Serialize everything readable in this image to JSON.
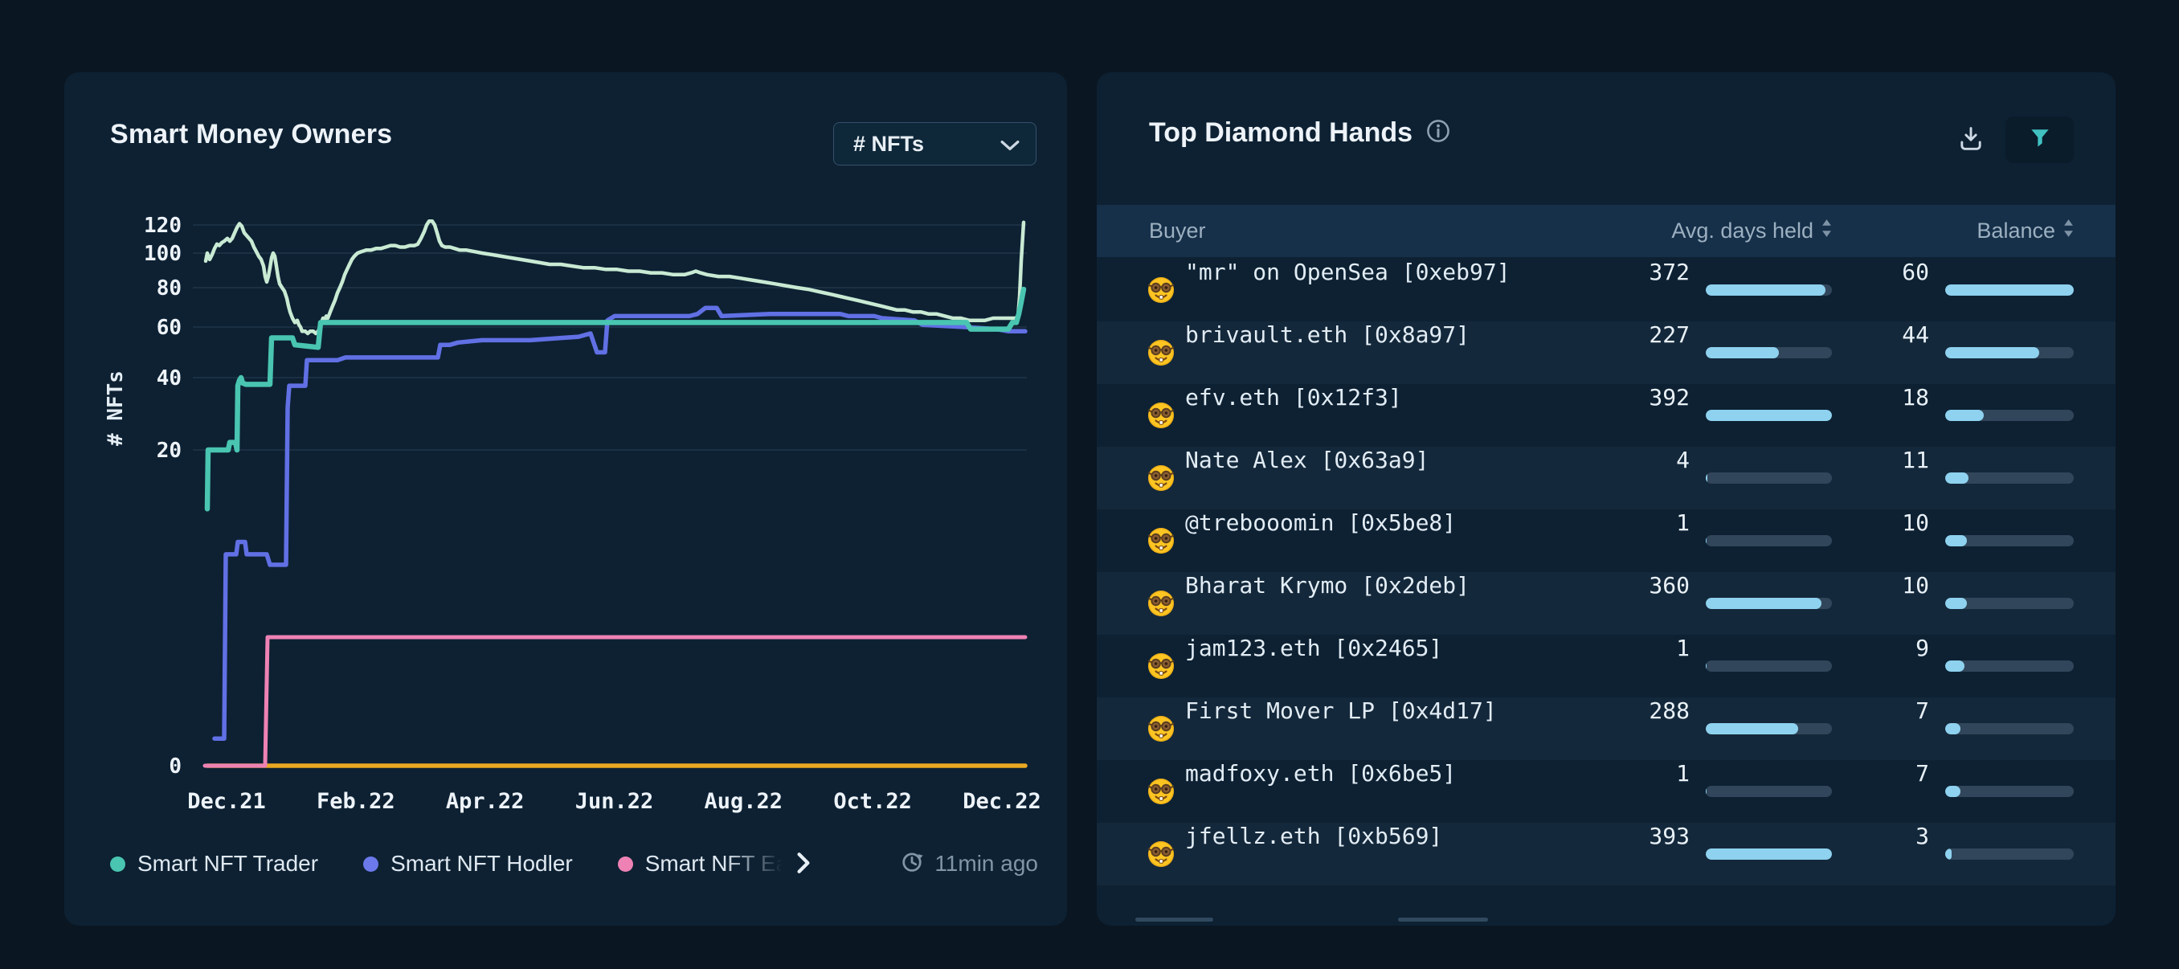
{
  "left_panel": {
    "title": "Smart Money Owners",
    "metric_dropdown": {
      "value": "# NFTs"
    },
    "last_updated": "11min ago",
    "legend": [
      {
        "label": "Smart NFT Trader",
        "color": "#49c5b1",
        "truncated": false
      },
      {
        "label": "Smart NFT Hodler",
        "color": "#6b79ea",
        "truncated": false
      },
      {
        "label": "Smart NFT Ea",
        "color": "#ee82b4",
        "truncated": true
      }
    ],
    "chart_data": {
      "type": "line",
      "title": "Smart Money Owners",
      "ylabel": "# NFTs",
      "y_scale": "log",
      "grid": "horizontal",
      "y_axis": {
        "ticks": [
          120,
          100,
          80,
          60,
          40,
          20
        ],
        "zero_tick": 0
      },
      "x_axis": {
        "ticks": [
          "Dec.21",
          "Feb.22",
          "Apr.22",
          "Jun.22",
          "Aug.22",
          "Oct.22",
          "Dec.22"
        ]
      },
      "series": [
        {
          "id": "mint-line",
          "legend": null,
          "color": "#c9ead3",
          "width": 4.5,
          "scale": "log",
          "points": [
            [
              256,
              95
            ],
            [
              258,
              100
            ],
            [
              261,
              96
            ],
            [
              264,
              99
            ],
            [
              267,
              103
            ],
            [
              270,
              106
            ],
            [
              273,
              105
            ],
            [
              276,
              107
            ],
            [
              279,
              108
            ],
            [
              283,
              110
            ],
            [
              286,
              108
            ],
            [
              289,
              110
            ],
            [
              292,
              114
            ],
            [
              295,
              118
            ],
            [
              298,
              121
            ],
            [
              301,
              119
            ],
            [
              304,
              114
            ],
            [
              307,
              112
            ],
            [
              310,
              110
            ],
            [
              313,
              108
            ],
            [
              316,
              104
            ],
            [
              319,
              101
            ],
            [
              322,
              98
            ],
            [
              325,
              96
            ],
            [
              328,
              92
            ],
            [
              330,
              86
            ],
            [
              332,
              83
            ],
            [
              334,
              86
            ],
            [
              336,
              91
            ],
            [
              338,
              97
            ],
            [
              340,
              100
            ],
            [
              342,
              98
            ],
            [
              344,
              92
            ],
            [
              346,
              86
            ],
            [
              348,
              82
            ],
            [
              351,
              80
            ],
            [
              354,
              78
            ],
            [
              357,
              74
            ],
            [
              359,
              70
            ],
            [
              361,
              67
            ],
            [
              364,
              64
            ],
            [
              367,
              62
            ],
            [
              370,
              63
            ],
            [
              372,
              61
            ],
            [
              374,
              60
            ],
            [
              376,
              58
            ],
            [
              380,
              58
            ],
            [
              383,
              57
            ],
            [
              386,
              58
            ],
            [
              390,
              58
            ],
            [
              393,
              57
            ],
            [
              396,
              58
            ],
            [
              398,
              60
            ],
            [
              400,
              62
            ],
            [
              402,
              64
            ],
            [
              404,
              63
            ],
            [
              406,
              65
            ],
            [
              408,
              64
            ],
            [
              411,
              67
            ],
            [
              414,
              70
            ],
            [
              417,
              73
            ],
            [
              420,
              77
            ],
            [
              423,
              80
            ],
            [
              426,
              83
            ],
            [
              429,
              87
            ],
            [
              432,
              90
            ],
            [
              435,
              93
            ],
            [
              438,
              96
            ],
            [
              441,
              98
            ],
            [
              445,
              100
            ],
            [
              450,
              101
            ],
            [
              456,
              102
            ],
            [
              462,
              102
            ],
            [
              468,
              103
            ],
            [
              474,
              103
            ],
            [
              480,
              104
            ],
            [
              486,
              105
            ],
            [
              492,
              105
            ],
            [
              498,
              104
            ],
            [
              504,
              104
            ],
            [
              510,
              105
            ],
            [
              516,
              105
            ],
            [
              520,
              106
            ],
            [
              524,
              110
            ],
            [
              528,
              115
            ],
            [
              531,
              120
            ],
            [
              534,
              123
            ],
            [
              538,
              123
            ],
            [
              541,
              120
            ],
            [
              544,
              114
            ],
            [
              547,
              108
            ],
            [
              550,
              105
            ],
            [
              554,
              104
            ],
            [
              560,
              104
            ],
            [
              566,
              103
            ],
            [
              572,
              102
            ],
            [
              580,
              102
            ],
            [
              590,
              101
            ],
            [
              600,
              100
            ],
            [
              612,
              99
            ],
            [
              624,
              98
            ],
            [
              636,
              97
            ],
            [
              648,
              96
            ],
            [
              660,
              95
            ],
            [
              672,
              94
            ],
            [
              684,
              93
            ],
            [
              698,
              93
            ],
            [
              712,
              92
            ],
            [
              726,
              91
            ],
            [
              740,
              91
            ],
            [
              754,
              90
            ],
            [
              768,
              90
            ],
            [
              782,
              89
            ],
            [
              796,
              89
            ],
            [
              810,
              88
            ],
            [
              824,
              88
            ],
            [
              838,
              87
            ],
            [
              852,
              87
            ],
            [
              860,
              88
            ],
            [
              866,
              89
            ],
            [
              872,
              88
            ],
            [
              880,
              87
            ],
            [
              894,
              86
            ],
            [
              908,
              86
            ],
            [
              922,
              85
            ],
            [
              936,
              84
            ],
            [
              950,
              83
            ],
            [
              964,
              82
            ],
            [
              978,
              81
            ],
            [
              992,
              80
            ],
            [
              1006,
              79
            ],
            [
              1016,
              78
            ],
            [
              1026,
              77
            ],
            [
              1036,
              76
            ],
            [
              1046,
              75
            ],
            [
              1056,
              74
            ],
            [
              1066,
              73
            ],
            [
              1076,
              72
            ],
            [
              1086,
              71
            ],
            [
              1096,
              70
            ],
            [
              1106,
              69
            ],
            [
              1116,
              68
            ],
            [
              1126,
              68
            ],
            [
              1136,
              67
            ],
            [
              1146,
              67
            ],
            [
              1156,
              66
            ],
            [
              1166,
              66
            ],
            [
              1176,
              65
            ],
            [
              1186,
              64
            ],
            [
              1196,
              64
            ],
            [
              1206,
              63
            ],
            [
              1216,
              63
            ],
            [
              1226,
              63
            ],
            [
              1236,
              64
            ],
            [
              1246,
              64
            ],
            [
              1256,
              64
            ],
            [
              1264,
              64
            ],
            [
              1267,
              65
            ],
            [
              1269,
              75
            ],
            [
              1271,
              95
            ],
            [
              1274,
              122
            ]
          ]
        },
        {
          "id": "blue-line",
          "legend": "Smart NFT Hodler",
          "color": "#6170e4",
          "width": 5.5,
          "scale": "log",
          "points": [
            [
              267,
              2
            ],
            [
              279,
              2
            ],
            [
              281,
              8.7
            ],
            [
              294,
              8.7
            ],
            [
              296,
              9.6
            ],
            [
              305,
              9.6
            ],
            [
              307,
              8.7
            ],
            [
              332,
              8.7
            ],
            [
              336,
              8
            ],
            [
              356,
              8
            ],
            [
              358,
              30
            ],
            [
              360,
              37
            ],
            [
              380,
              37
            ],
            [
              382,
              46
            ],
            [
              420,
              46
            ],
            [
              430,
              47
            ],
            [
              545,
              47
            ],
            [
              548,
              52
            ],
            [
              560,
              52
            ],
            [
              570,
              53
            ],
            [
              600,
              54
            ],
            [
              660,
              54
            ],
            [
              700,
              55
            ],
            [
              720,
              55.5
            ],
            [
              735,
              57
            ],
            [
              743,
              49
            ],
            [
              753,
              49
            ],
            [
              756,
              63
            ],
            [
              765,
              65
            ],
            [
              858,
              65
            ],
            [
              868,
              66
            ],
            [
              878,
              69
            ],
            [
              892,
              69
            ],
            [
              898,
              65
            ],
            [
              958,
              66
            ],
            [
              1006,
              66
            ],
            [
              1046,
              66
            ],
            [
              1056,
              65
            ],
            [
              1088,
              65
            ],
            [
              1098,
              64
            ],
            [
              1138,
              63
            ],
            [
              1148,
              61
            ],
            [
              1200,
              60
            ],
            [
              1240,
              59
            ],
            [
              1255,
              58
            ],
            [
              1262,
              58
            ],
            [
              1276,
              58
            ]
          ]
        },
        {
          "id": "teal-line",
          "legend": "Smart NFT Trader",
          "color": "#49c5b1",
          "width": 6.5,
          "scale": "log",
          "points": [
            [
              258,
              12.5
            ],
            [
              259,
              20
            ],
            [
              284,
              20
            ],
            [
              286,
              21.5
            ],
            [
              293,
              21.5
            ],
            [
              295,
              20
            ],
            [
              296,
              37
            ],
            [
              298,
              39
            ],
            [
              300,
              40
            ],
            [
              302,
              38
            ],
            [
              306,
              37.5
            ],
            [
              336,
              37.5
            ],
            [
              338,
              55
            ],
            [
              364,
              55
            ],
            [
              367,
              52
            ],
            [
              396,
              51
            ],
            [
              399,
              62
            ],
            [
              1203,
              62
            ],
            [
              1208,
              59
            ],
            [
              1255,
              59
            ],
            [
              1260,
              62
            ],
            [
              1265,
              62
            ],
            [
              1268,
              66
            ],
            [
              1271,
              72
            ],
            [
              1274,
              79
            ]
          ]
        },
        {
          "id": "yellow-line",
          "legend": null,
          "color": "#e9a823",
          "width": 5.5,
          "scale": "px",
          "points": [
            [
              258,
              953
            ],
            [
              1276,
              953
            ]
          ]
        },
        {
          "id": "pink-line",
          "legend": "Smart NFT Ea",
          "color": "#ee82b4",
          "width": 5,
          "scale": "px",
          "points": [
            [
              255,
              953
            ],
            [
              330,
              953
            ],
            [
              333,
              793
            ],
            [
              1276,
              793
            ]
          ]
        }
      ]
    }
  },
  "right_panel": {
    "title": "Top Diamond Hands",
    "columns": [
      "Buyer",
      "Avg. days held",
      "Balance"
    ],
    "avg_days_max": 393,
    "balance_max": 60,
    "bar_fill_color": "#8ed2ef",
    "bar_track_color": "#31465a",
    "rows": [
      {
        "buyer": "\"mr\" on OpenSea [0xeb97]",
        "avg_days": 372,
        "balance": 60
      },
      {
        "buyer": "brivault.eth [0x8a97]",
        "avg_days": 227,
        "balance": 44
      },
      {
        "buyer": "efv.eth [0x12f3]",
        "avg_days": 392,
        "balance": 18
      },
      {
        "buyer": "Nate Alex [0x63a9]",
        "avg_days": 4,
        "balance": 11
      },
      {
        "buyer": "@trebooomin [0x5be8]",
        "avg_days": 1,
        "balance": 10
      },
      {
        "buyer": "Bharat Krymo [0x2deb]",
        "avg_days": 360,
        "balance": 10
      },
      {
        "buyer": "jam123.eth [0x2465]",
        "avg_days": 1,
        "balance": 9
      },
      {
        "buyer": "First Mover LP [0x4d17]",
        "avg_days": 288,
        "balance": 7
      },
      {
        "buyer": "madfoxy.eth [0x6be5]",
        "avg_days": 1,
        "balance": 7
      },
      {
        "buyer": "jfellz.eth [0xb569]",
        "avg_days": 393,
        "balance": 3
      }
    ]
  },
  "icons": {
    "dropdown": "chevron-down",
    "info": "info-circle",
    "download": "download-tray",
    "filter": "funnel",
    "sort": "sort-arrows",
    "last_updated": "history-clock",
    "legend_more": "chevron-right",
    "row_badge": "nerd-face-emoji"
  },
  "colors": {
    "page_bg": "#0a1622",
    "panel_bg": "#0d2133",
    "table_header_bg": "#16304a",
    "accent_teal": "#41c1c1"
  }
}
